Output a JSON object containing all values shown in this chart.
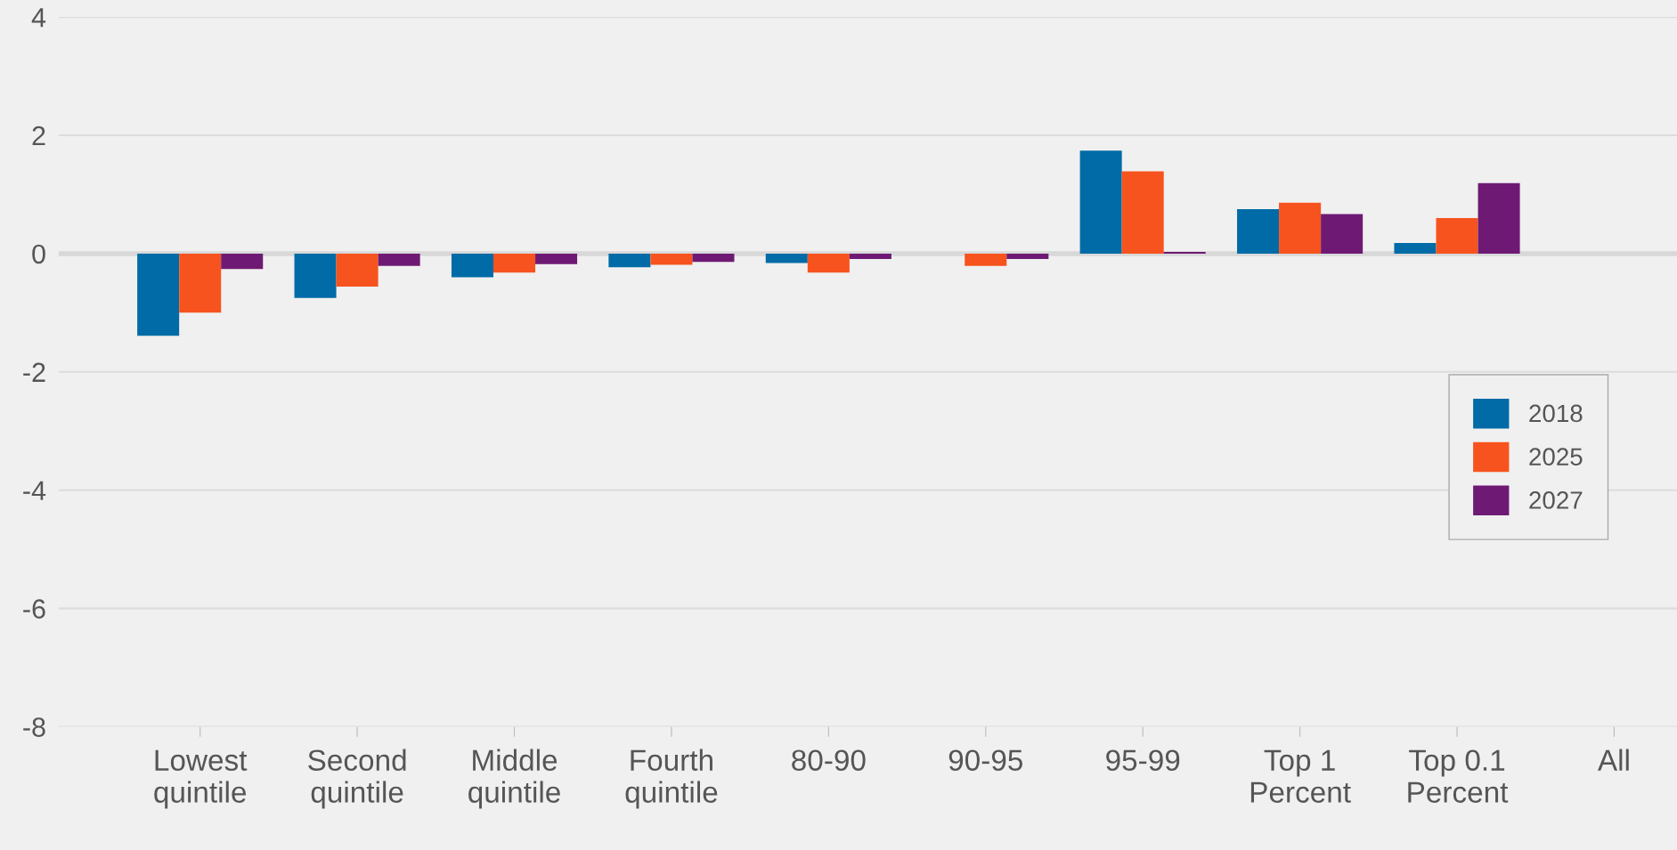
{
  "chart_data": {
    "type": "bar",
    "categories": [
      "Lowest\nquintile",
      "Second\nquintile",
      "Middle\nquintile",
      "Fourth\nquintile",
      "80-90",
      "90-95",
      "95-99",
      "Top 1\nPercent",
      "Top 0.1\nPercent",
      "All"
    ],
    "series": [
      {
        "name": "2018",
        "color": "#006ba6",
        "values": [
          -1.39,
          -0.75,
          -0.4,
          -0.23,
          -0.16,
          0,
          1.74,
          0.75,
          0.18,
          0
        ]
      },
      {
        "name": "2025",
        "color": "#f7531e",
        "values": [
          -1.0,
          -0.56,
          -0.32,
          -0.19,
          -0.32,
          -0.21,
          1.39,
          0.86,
          0.6,
          0
        ]
      },
      {
        "name": "2027",
        "color": "#6e1a74",
        "values": [
          -0.26,
          -0.21,
          -0.18,
          -0.14,
          -0.09,
          -0.09,
          0.03,
          0.67,
          1.19,
          0
        ]
      }
    ],
    "ylim": [
      -8,
      4
    ],
    "yticks": [
      -8,
      -6,
      -4,
      -2,
      0,
      2,
      4
    ],
    "grid": "y",
    "legend": "right"
  }
}
